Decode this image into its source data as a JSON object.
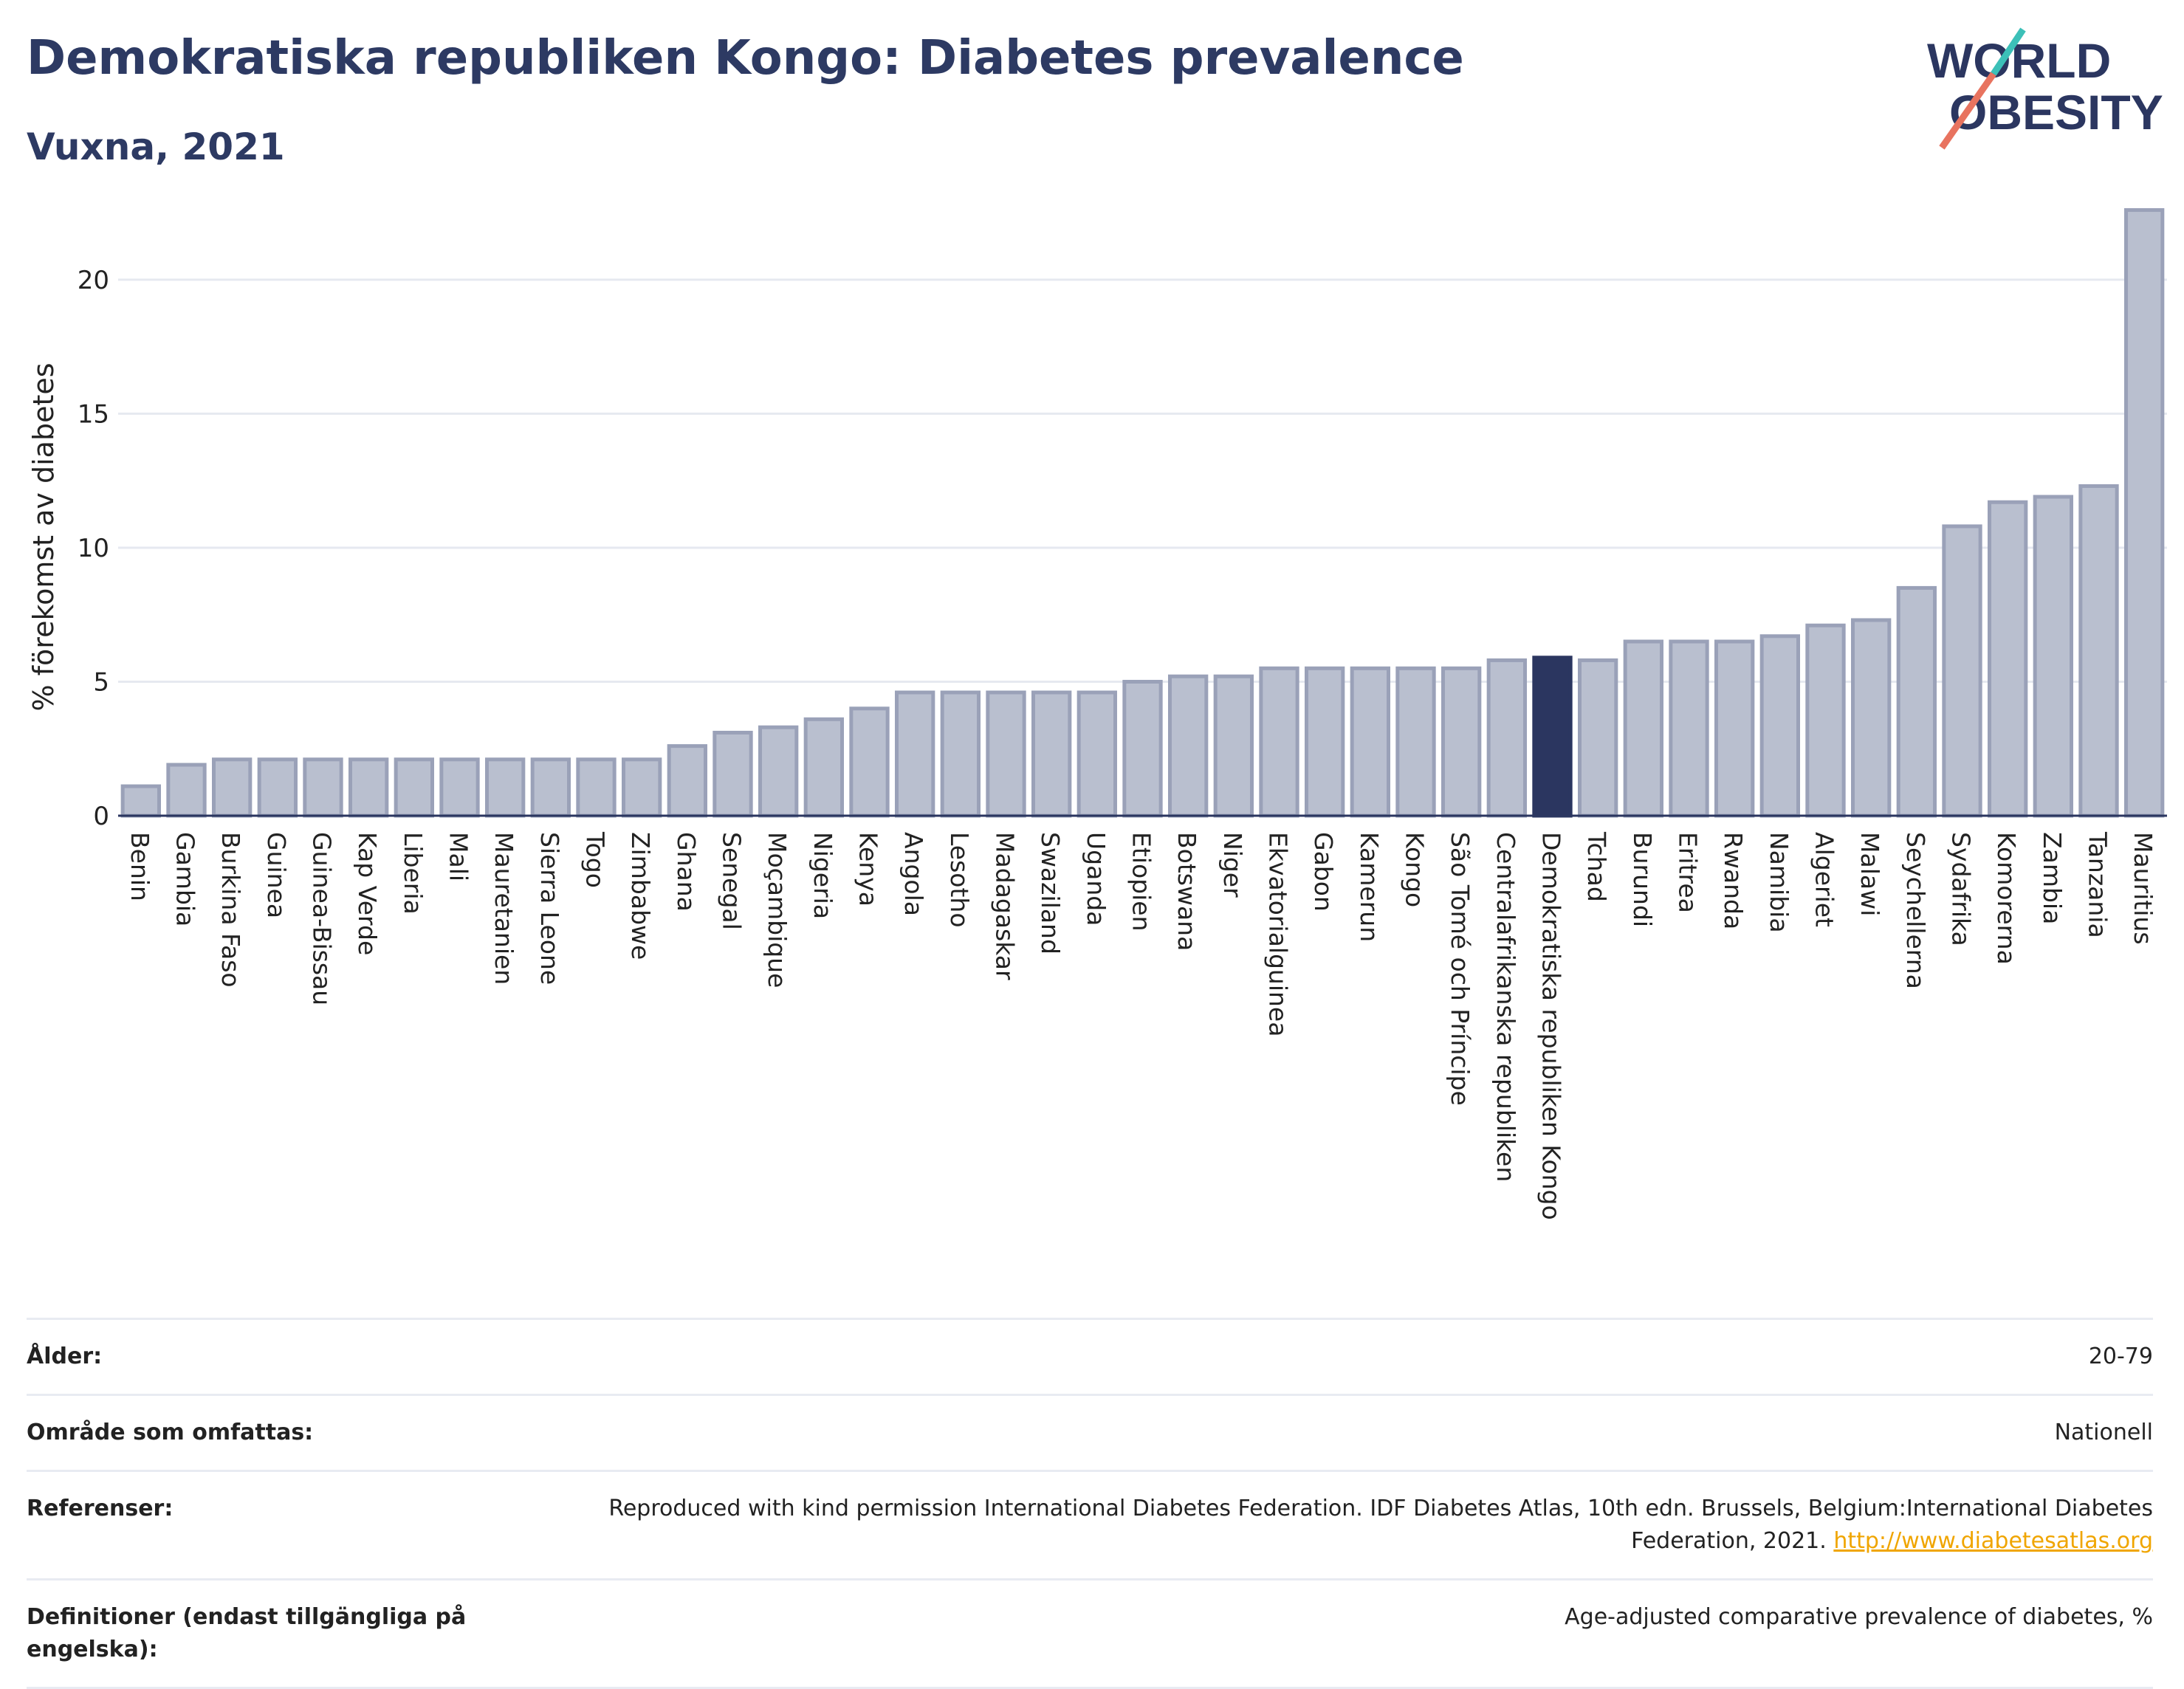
{
  "header": {
    "title": "Demokratiska republiken Kongo: Diabetes prevalence",
    "subtitle": "Vuxna, 2021"
  },
  "logo": {
    "line1": "WORLD",
    "line2": "OBESITY"
  },
  "colors": {
    "bar": "#b9bfcf",
    "bar_stroke": "#9aa1b8",
    "highlight": "#2b3660",
    "grid": "#e6e9f0"
  },
  "chart_data": {
    "type": "bar",
    "title": "",
    "xlabel": "",
    "ylabel": "% förekomst av diabetes",
    "ylim": [
      0,
      23
    ],
    "yticks": [
      0,
      5,
      10,
      15,
      20
    ],
    "grid": true,
    "highlight": "Demokratiska republiken Kongo",
    "categories": [
      "Benin",
      "Gambia",
      "Burkina Faso",
      "Guinea",
      "Guinea-Bissau",
      "Kap Verde",
      "Liberia",
      "Mali",
      "Mauretanien",
      "Sierra Leone",
      "Togo",
      "Zimbabwe",
      "Ghana",
      "Senegal",
      "Moçambique",
      "Nigeria",
      "Kenya",
      "Angola",
      "Lesotho",
      "Madagaskar",
      "Swaziland",
      "Uganda",
      "Etiopien",
      "Botswana",
      "Niger",
      "Ekvatorialguinea",
      "Gabon",
      "Kamerun",
      "Kongo",
      "São Tomé och Príncipe",
      "Centralafrikanska republiken",
      "Demokratiska republiken Kongo",
      "Tchad",
      "Burundi",
      "Eritrea",
      "Rwanda",
      "Namibia",
      "Algeriet",
      "Malawi",
      "Seychellerna",
      "Sydafrika",
      "Komorerna",
      "Zambia",
      "Tanzania",
      "Mauritius"
    ],
    "values": [
      1.1,
      1.9,
      2.1,
      2.1,
      2.1,
      2.1,
      2.1,
      2.1,
      2.1,
      2.1,
      2.1,
      2.1,
      2.6,
      3.1,
      3.3,
      3.6,
      4.0,
      4.6,
      4.6,
      4.6,
      4.6,
      4.6,
      5.0,
      5.2,
      5.2,
      5.5,
      5.5,
      5.5,
      5.5,
      5.5,
      5.8,
      5.9,
      5.8,
      6.5,
      6.5,
      6.5,
      6.7,
      7.1,
      7.3,
      8.5,
      10.8,
      11.7,
      11.9,
      12.3,
      22.6
    ]
  },
  "meta": [
    {
      "label": "Ålder:",
      "value": "20-79"
    },
    {
      "label": "Område som omfattas:",
      "value": "Nationell"
    },
    {
      "label": "Referenser:",
      "value": "Reproduced with kind permission International Diabetes Federation.  IDF Diabetes Atlas, 10th edn. Brussels, Belgium:International Diabetes Federation, 2021.",
      "link": "http://www.diabetesatlas.org"
    },
    {
      "label": "Definitioner (endast tillgängliga på engelska):",
      "value": "Age-adjusted comparative prevalence of diabetes, %"
    }
  ]
}
